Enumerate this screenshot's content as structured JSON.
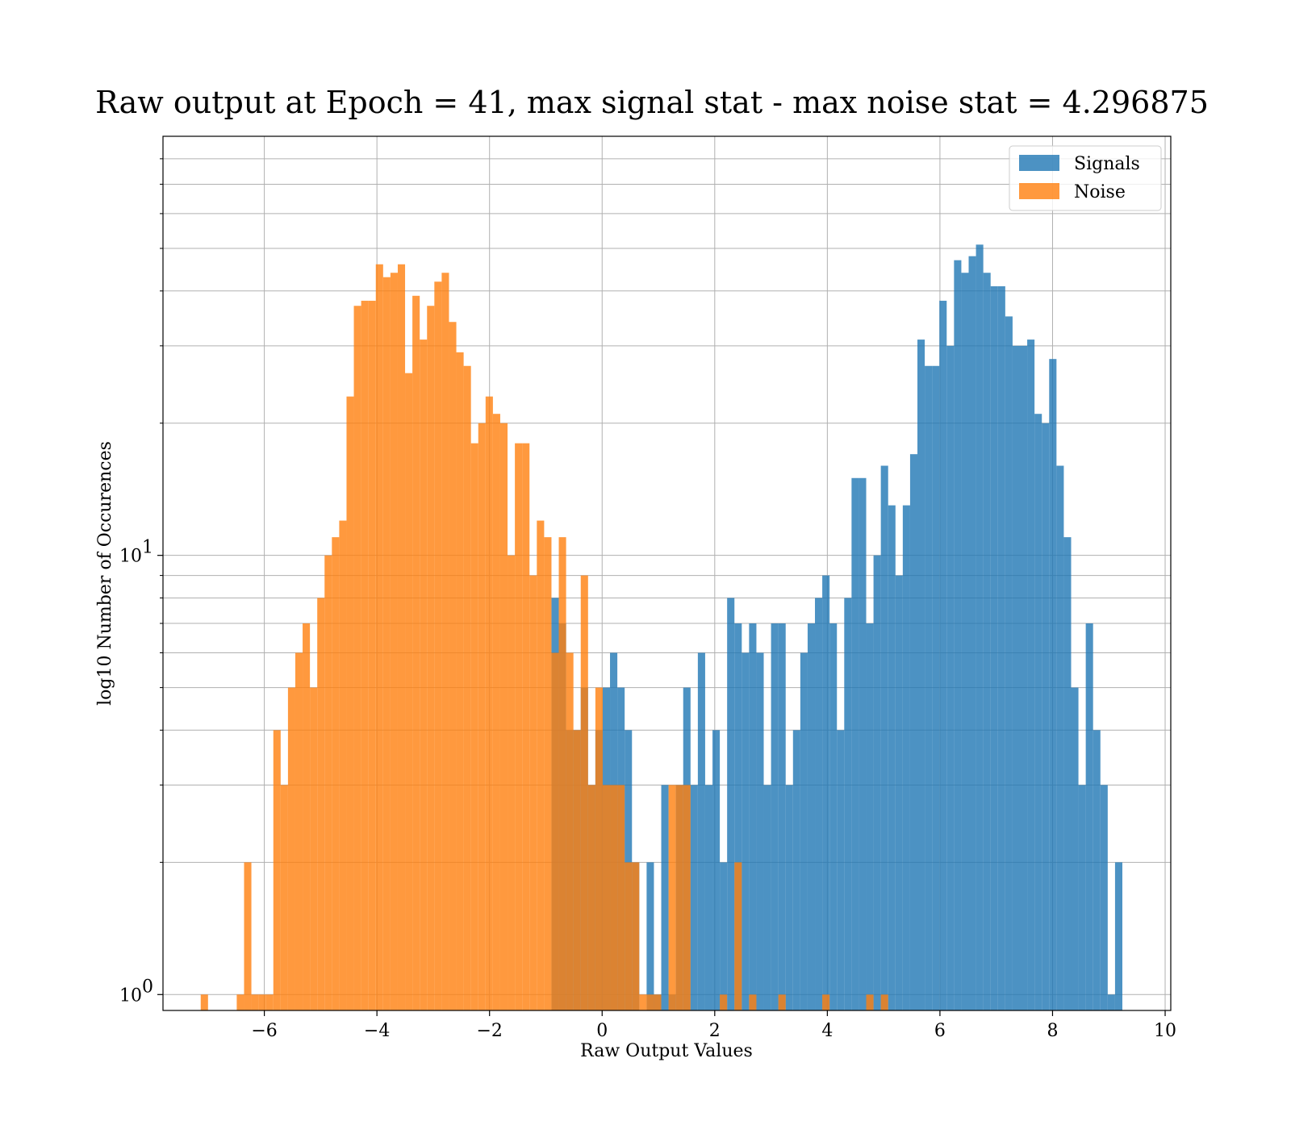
{
  "chart_data": {
    "type": "histogram",
    "title": "Raw output at Epoch = 41, max signal stat - max noise stat = 4.296875",
    "xlabel": "Raw Output Values",
    "ylabel": "log10 Number of Occurences",
    "xlim": [
      -7.8,
      10.1
    ],
    "ylim": [
      0.92,
      90
    ],
    "y_scale": "log",
    "grid": true,
    "legend_position": "top-right",
    "x_ticks": [
      {
        "value": -6,
        "label": "−6"
      },
      {
        "value": -4,
        "label": "−4"
      },
      {
        "value": -2,
        "label": "−2"
      },
      {
        "value": 0,
        "label": "0"
      },
      {
        "value": 2,
        "label": "2"
      },
      {
        "value": 4,
        "label": "4"
      },
      {
        "value": 6,
        "label": "6"
      },
      {
        "value": 8,
        "label": "8"
      },
      {
        "value": 10,
        "label": "10"
      }
    ],
    "y_major_ticks": [
      {
        "value": 1,
        "label_base": "10",
        "label_exp": "0"
      },
      {
        "value": 10,
        "label_base": "10",
        "label_exp": "1"
      }
    ],
    "y_minor_ticks": [
      0.9,
      2,
      3,
      4,
      5,
      6,
      7,
      8,
      9,
      20,
      30,
      40,
      50,
      60,
      70,
      80
    ],
    "series": [
      {
        "name": "Signals",
        "color": "#1f77b4",
        "opacity": 0.8,
        "bins": [
          [
            -0.9,
            -0.77,
            8
          ],
          [
            -0.77,
            -0.64,
            7
          ],
          [
            -0.64,
            -0.51,
            4
          ],
          [
            -0.51,
            -0.38,
            4
          ],
          [
            -0.38,
            -0.25,
            5
          ],
          [
            -0.25,
            -0.12,
            3
          ],
          [
            -0.12,
            0.01,
            4
          ],
          [
            0.01,
            0.14,
            5
          ],
          [
            0.14,
            0.27,
            6
          ],
          [
            0.27,
            0.4,
            5
          ],
          [
            0.4,
            0.53,
            4
          ],
          [
            0.53,
            0.66,
            2
          ],
          [
            0.79,
            0.92,
            2
          ],
          [
            0.92,
            1.05,
            1
          ],
          [
            1.05,
            1.18,
            3
          ],
          [
            1.18,
            1.31,
            1
          ],
          [
            1.31,
            1.44,
            3
          ],
          [
            1.44,
            1.57,
            5
          ],
          [
            1.57,
            1.7,
            3
          ],
          [
            1.7,
            1.83,
            6
          ],
          [
            1.83,
            1.96,
            3
          ],
          [
            1.96,
            2.09,
            4
          ],
          [
            2.09,
            2.22,
            2
          ],
          [
            2.22,
            2.35,
            8
          ],
          [
            2.35,
            2.48,
            7
          ],
          [
            2.48,
            2.61,
            6
          ],
          [
            2.61,
            2.74,
            7
          ],
          [
            2.74,
            2.87,
            6
          ],
          [
            2.87,
            3.0,
            3
          ],
          [
            3.0,
            3.13,
            7
          ],
          [
            3.13,
            3.26,
            7
          ],
          [
            3.26,
            3.39,
            3
          ],
          [
            3.39,
            3.52,
            4
          ],
          [
            3.52,
            3.65,
            6
          ],
          [
            3.65,
            3.78,
            7
          ],
          [
            3.78,
            3.91,
            8
          ],
          [
            3.91,
            4.04,
            9
          ],
          [
            4.04,
            4.17,
            7
          ],
          [
            4.17,
            4.3,
            4
          ],
          [
            4.3,
            4.43,
            8
          ],
          [
            4.43,
            4.56,
            15
          ],
          [
            4.56,
            4.69,
            15
          ],
          [
            4.69,
            4.82,
            7
          ],
          [
            4.82,
            4.95,
            10
          ],
          [
            4.95,
            5.08,
            16
          ],
          [
            5.08,
            5.21,
            13
          ],
          [
            5.21,
            5.34,
            9
          ],
          [
            5.34,
            5.47,
            13
          ],
          [
            5.47,
            5.6,
            17
          ],
          [
            5.6,
            5.73,
            31
          ],
          [
            5.73,
            5.86,
            27
          ],
          [
            5.86,
            5.99,
            27
          ],
          [
            5.99,
            6.12,
            38
          ],
          [
            6.12,
            6.25,
            30
          ],
          [
            6.25,
            6.38,
            47
          ],
          [
            6.38,
            6.51,
            44
          ],
          [
            6.51,
            6.64,
            48
          ],
          [
            6.64,
            6.77,
            51
          ],
          [
            6.77,
            6.9,
            44
          ],
          [
            6.9,
            7.03,
            41
          ],
          [
            7.03,
            7.16,
            41
          ],
          [
            7.16,
            7.29,
            35
          ],
          [
            7.29,
            7.42,
            30
          ],
          [
            7.42,
            7.55,
            30
          ],
          [
            7.55,
            7.68,
            31
          ],
          [
            7.68,
            7.81,
            21
          ],
          [
            7.81,
            7.94,
            20
          ],
          [
            7.94,
            8.07,
            28
          ],
          [
            8.07,
            8.2,
            16
          ],
          [
            8.2,
            8.33,
            11
          ],
          [
            8.33,
            8.46,
            5
          ],
          [
            8.46,
            8.59,
            3
          ],
          [
            8.59,
            8.72,
            7
          ],
          [
            8.72,
            8.85,
            4
          ],
          [
            8.85,
            8.98,
            3
          ],
          [
            8.98,
            9.11,
            1
          ],
          [
            9.11,
            9.24,
            2
          ]
        ]
      },
      {
        "name": "Noise",
        "color": "#ff7f0e",
        "opacity": 0.8,
        "bins": [
          [
            -7.13,
            -7.0,
            1
          ],
          [
            -6.49,
            -6.36,
            1
          ],
          [
            -6.36,
            -6.23,
            2
          ],
          [
            -6.23,
            -6.1,
            1
          ],
          [
            -6.1,
            -5.97,
            1
          ],
          [
            -5.97,
            -5.84,
            1
          ],
          [
            -5.84,
            -5.71,
            4
          ],
          [
            -5.71,
            -5.58,
            3
          ],
          [
            -5.58,
            -5.45,
            5
          ],
          [
            -5.45,
            -5.32,
            6
          ],
          [
            -5.32,
            -5.19,
            7
          ],
          [
            -5.19,
            -5.06,
            5
          ],
          [
            -5.06,
            -4.93,
            8
          ],
          [
            -4.93,
            -4.8,
            10
          ],
          [
            -4.8,
            -4.67,
            11
          ],
          [
            -4.67,
            -4.54,
            12
          ],
          [
            -4.54,
            -4.41,
            23
          ],
          [
            -4.41,
            -4.28,
            37
          ],
          [
            -4.28,
            -4.15,
            38
          ],
          [
            -4.15,
            -4.02,
            38
          ],
          [
            -4.02,
            -3.89,
            46
          ],
          [
            -3.89,
            -3.76,
            43
          ],
          [
            -3.76,
            -3.63,
            44
          ],
          [
            -3.63,
            -3.5,
            46
          ],
          [
            -3.5,
            -3.37,
            26
          ],
          [
            -3.37,
            -3.24,
            39
          ],
          [
            -3.24,
            -3.11,
            31
          ],
          [
            -3.11,
            -2.98,
            37
          ],
          [
            -2.98,
            -2.85,
            42
          ],
          [
            -2.85,
            -2.72,
            44
          ],
          [
            -2.72,
            -2.59,
            34
          ],
          [
            -2.59,
            -2.46,
            29
          ],
          [
            -2.46,
            -2.33,
            27
          ],
          [
            -2.33,
            -2.2,
            18
          ],
          [
            -2.2,
            -2.07,
            20
          ],
          [
            -2.07,
            -1.94,
            23
          ],
          [
            -1.94,
            -1.81,
            21
          ],
          [
            -1.81,
            -1.68,
            20
          ],
          [
            -1.68,
            -1.55,
            10
          ],
          [
            -1.55,
            -1.42,
            18
          ],
          [
            -1.42,
            -1.29,
            18
          ],
          [
            -1.29,
            -1.16,
            9
          ],
          [
            -1.16,
            -1.03,
            12
          ],
          [
            -1.03,
            -0.9,
            11
          ],
          [
            -0.9,
            -0.77,
            6
          ],
          [
            -0.77,
            -0.64,
            11
          ],
          [
            -0.64,
            -0.51,
            6
          ],
          [
            -0.51,
            -0.38,
            4
          ],
          [
            -0.38,
            -0.25,
            9
          ],
          [
            -0.25,
            -0.12,
            3
          ],
          [
            -0.12,
            0.01,
            5
          ],
          [
            0.01,
            0.14,
            3
          ],
          [
            0.14,
            0.27,
            3
          ],
          [
            0.27,
            0.4,
            3
          ],
          [
            0.4,
            0.53,
            2
          ],
          [
            0.53,
            0.66,
            2
          ],
          [
            0.66,
            0.79,
            1
          ],
          [
            0.79,
            0.92,
            1
          ],
          [
            0.92,
            1.05,
            1
          ],
          [
            1.18,
            1.31,
            3
          ],
          [
            1.31,
            1.44,
            3
          ],
          [
            1.44,
            1.57,
            3
          ],
          [
            2.09,
            2.22,
            1
          ],
          [
            2.35,
            2.48,
            2
          ],
          [
            2.61,
            2.74,
            1
          ],
          [
            3.13,
            3.26,
            1
          ],
          [
            3.91,
            4.04,
            1
          ],
          [
            4.69,
            4.82,
            1
          ],
          [
            4.95,
            5.08,
            1
          ]
        ]
      }
    ]
  }
}
